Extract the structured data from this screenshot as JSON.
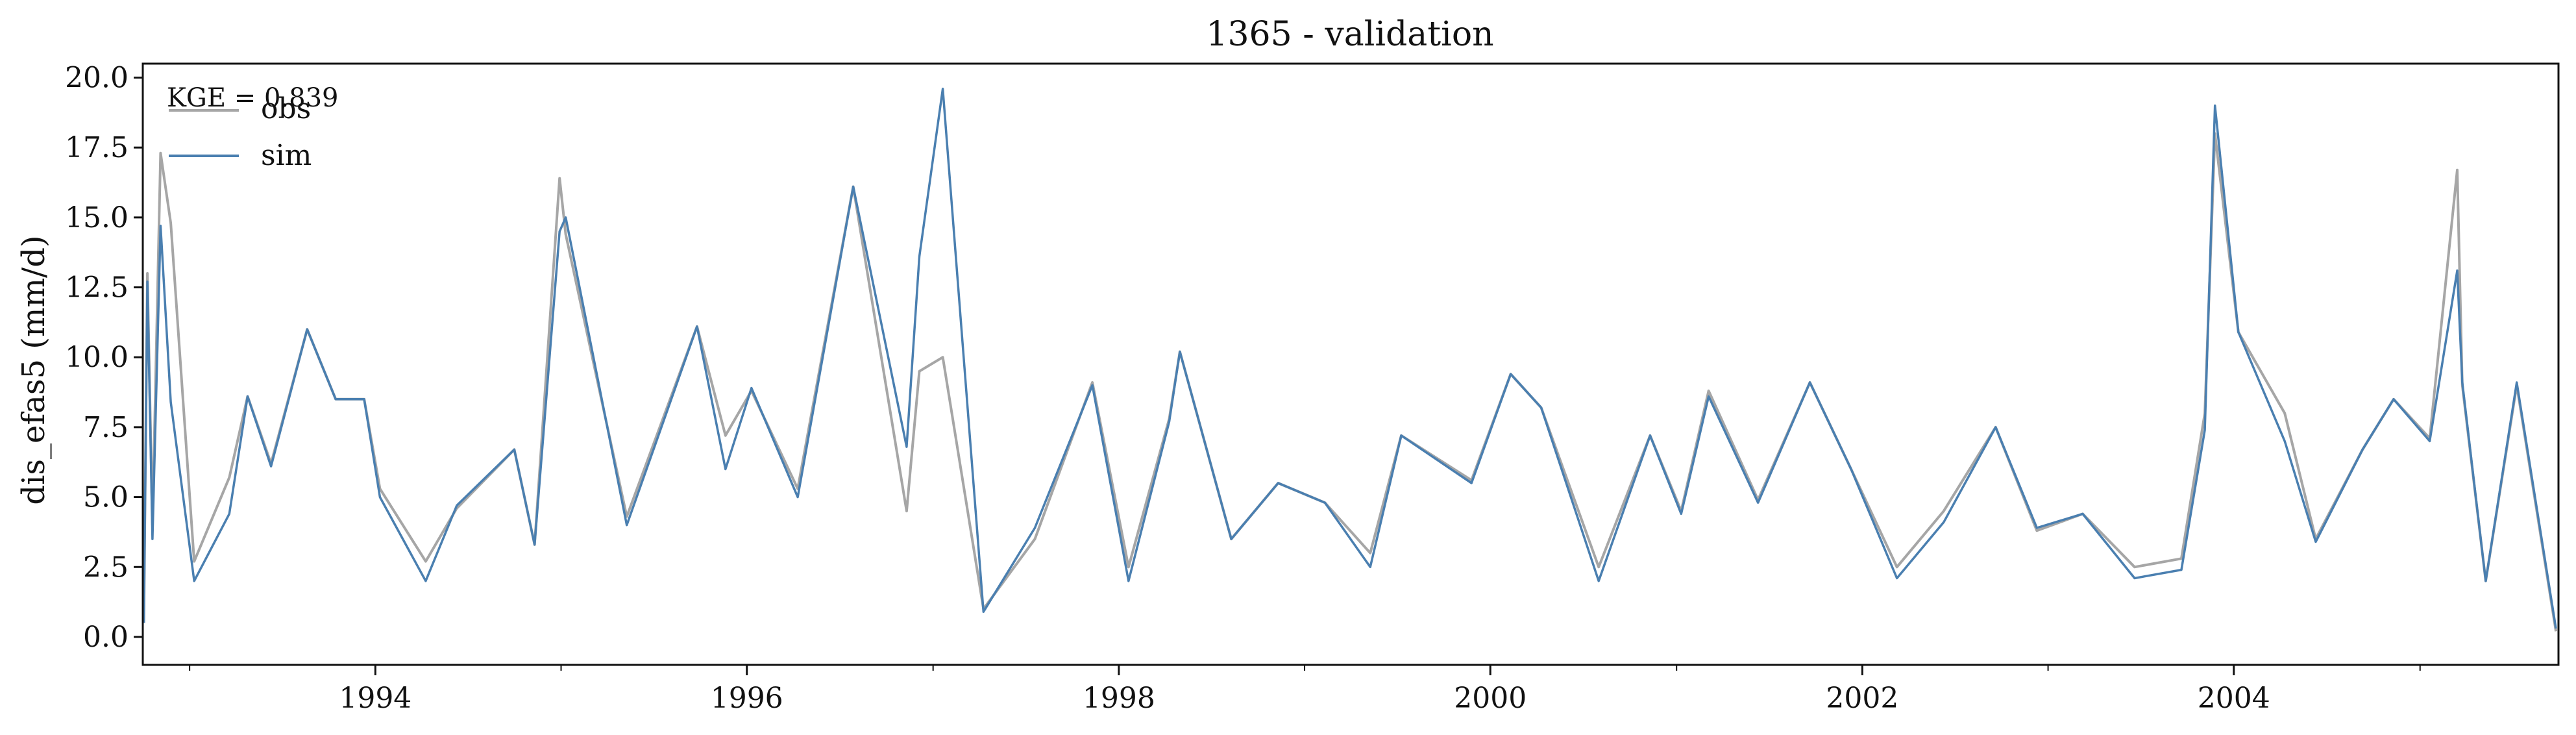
{
  "chart_data": {
    "type": "line",
    "title": "1365 - validation",
    "xlabel": "",
    "ylabel": "dis_efas5 (mm/d)",
    "annotation": "KGE = 0.839",
    "xlim": [
      "1992-10-01",
      "2005-09-30"
    ],
    "ylim": [
      -1.0,
      20.5
    ],
    "yticks": [
      "0.0",
      "2.5",
      "5.0",
      "7.5",
      "10.0",
      "12.5",
      "15.0",
      "17.5",
      "20.0"
    ],
    "xticks": [
      "1994",
      "1996",
      "1998",
      "2000",
      "2002",
      "2004"
    ],
    "grid": false,
    "legend_position": "top-left",
    "series": [
      {
        "name": "obs",
        "color": "#a6a6a6",
        "x": [
          "1992-10-03",
          "1992-10-10",
          "1992-10-20",
          "1992-11-05",
          "1992-11-25",
          "1993-01-10",
          "1993-03-20",
          "1993-04-25",
          "1993-06-10",
          "1993-08-20",
          "1993-10-15",
          "1993-12-10",
          "1994-01-10",
          "1994-04-10",
          "1994-06-10",
          "1994-10-01",
          "1994-11-10",
          "1994-12-29",
          "1995-01-10",
          "1995-05-10",
          "1995-09-25",
          "1995-11-20",
          "1996-01-10",
          "1996-04-10",
          "1996-07-28",
          "1996-11-10",
          "1996-12-05",
          "1997-01-20",
          "1997-04-10",
          "1997-07-20",
          "1997-11-10",
          "1998-01-20",
          "1998-04-10",
          "1998-05-01",
          "1998-08-10",
          "1998-11-10",
          "1999-02-10",
          "1999-05-10",
          "1999-07-10",
          "1999-11-25",
          "2000-02-10",
          "2000-04-10",
          "2000-08-01",
          "2000-11-10",
          "2001-01-10",
          "2001-03-05",
          "2001-06-10",
          "2001-09-20",
          "2001-12-10",
          "2002-03-10",
          "2002-06-10",
          "2002-09-20",
          "2002-12-10",
          "2003-03-10",
          "2003-06-20",
          "2003-09-20",
          "2003-11-05",
          "2003-11-25",
          "2004-01-10",
          "2004-04-10",
          "2004-06-10",
          "2004-09-10",
          "2004-11-10",
          "2005-01-20",
          "2005-03-15",
          "2005-03-25",
          "2005-05-10",
          "2005-07-10",
          "2005-09-25"
        ],
        "values": [
          0.5,
          13.0,
          4.0,
          17.3,
          14.8,
          2.7,
          5.7,
          8.6,
          6.2,
          11.0,
          8.5,
          8.5,
          5.3,
          2.7,
          4.6,
          6.7,
          3.3,
          16.4,
          14.4,
          4.3,
          11.1,
          7.2,
          8.8,
          5.3,
          16.1,
          4.5,
          9.5,
          10.0,
          1.0,
          3.5,
          9.1,
          2.5,
          7.8,
          10.2,
          3.5,
          5.5,
          4.8,
          3.0,
          7.2,
          5.6,
          9.4,
          8.2,
          2.5,
          7.2,
          4.5,
          8.8,
          4.9,
          9.1,
          6.0,
          2.5,
          4.5,
          7.5,
          3.8,
          4.4,
          2.5,
          2.8,
          8.0,
          18.0,
          10.9,
          8.0,
          3.5,
          6.7,
          8.5,
          7.1,
          16.7,
          9.0,
          2.0,
          9.0,
          0.2
        ]
      },
      {
        "name": "sim",
        "color": "#4a7fb0",
        "x": [
          "1992-10-03",
          "1992-10-10",
          "1992-10-20",
          "1992-11-05",
          "1992-11-25",
          "1993-01-10",
          "1993-03-20",
          "1993-04-25",
          "1993-06-10",
          "1993-08-20",
          "1993-10-15",
          "1993-12-10",
          "1994-01-10",
          "1994-04-10",
          "1994-06-10",
          "1994-10-01",
          "1994-11-10",
          "1994-12-29",
          "1995-01-10",
          "1995-05-10",
          "1995-09-25",
          "1995-11-20",
          "1996-01-10",
          "1996-04-10",
          "1996-07-28",
          "1996-11-10",
          "1996-12-05",
          "1997-01-20",
          "1997-04-10",
          "1997-07-20",
          "1997-11-10",
          "1998-01-20",
          "1998-04-10",
          "1998-05-01",
          "1998-08-10",
          "1998-11-10",
          "1999-02-10",
          "1999-05-10",
          "1999-07-10",
          "1999-11-25",
          "2000-02-10",
          "2000-04-10",
          "2000-08-01",
          "2000-11-10",
          "2001-01-10",
          "2001-03-05",
          "2001-06-10",
          "2001-09-20",
          "2001-12-10",
          "2002-03-10",
          "2002-06-10",
          "2002-09-20",
          "2002-12-10",
          "2003-03-10",
          "2003-06-20",
          "2003-09-20",
          "2003-11-05",
          "2003-11-25",
          "2004-01-10",
          "2004-04-10",
          "2004-06-10",
          "2004-09-10",
          "2004-11-10",
          "2005-01-20",
          "2005-03-15",
          "2005-03-25",
          "2005-05-10",
          "2005-07-10",
          "2005-09-25"
        ],
        "values": [
          0.5,
          12.7,
          3.5,
          14.7,
          8.4,
          2.0,
          4.4,
          8.6,
          6.1,
          11.0,
          8.5,
          8.5,
          5.0,
          2.0,
          4.7,
          6.7,
          3.3,
          14.5,
          15.0,
          4.0,
          11.1,
          6.0,
          8.9,
          5.0,
          16.1,
          6.8,
          13.6,
          19.6,
          0.9,
          3.9,
          9.0,
          2.0,
          7.7,
          10.2,
          3.5,
          5.5,
          4.8,
          2.5,
          7.2,
          5.5,
          9.4,
          8.2,
          2.0,
          7.2,
          4.4,
          8.6,
          4.8,
          9.1,
          6.0,
          2.1,
          4.1,
          7.5,
          3.9,
          4.4,
          2.1,
          2.4,
          7.4,
          19.0,
          10.9,
          7.0,
          3.4,
          6.7,
          8.5,
          7.0,
          13.1,
          9.1,
          2.0,
          9.1,
          0.3
        ]
      }
    ]
  }
}
